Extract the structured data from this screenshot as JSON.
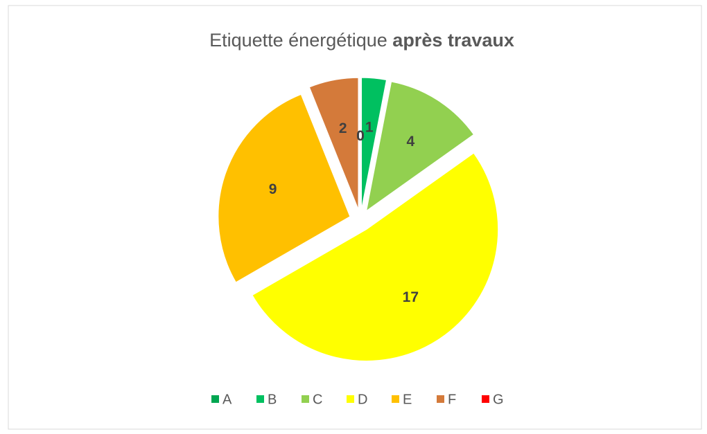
{
  "chart_data": {
    "type": "pie",
    "title": "Etiquette énergétique",
    "title_bold": "après travaux",
    "categories": [
      "A",
      "B",
      "C",
      "D",
      "E",
      "F",
      "G"
    ],
    "values": [
      0,
      1,
      4,
      17,
      9,
      2,
      0
    ],
    "colors": [
      "#00a651",
      "#00c060",
      "#92d050",
      "#ffff00",
      "#ffc000",
      "#d47a3a",
      "#ff0000"
    ],
    "legend": "bottom"
  }
}
